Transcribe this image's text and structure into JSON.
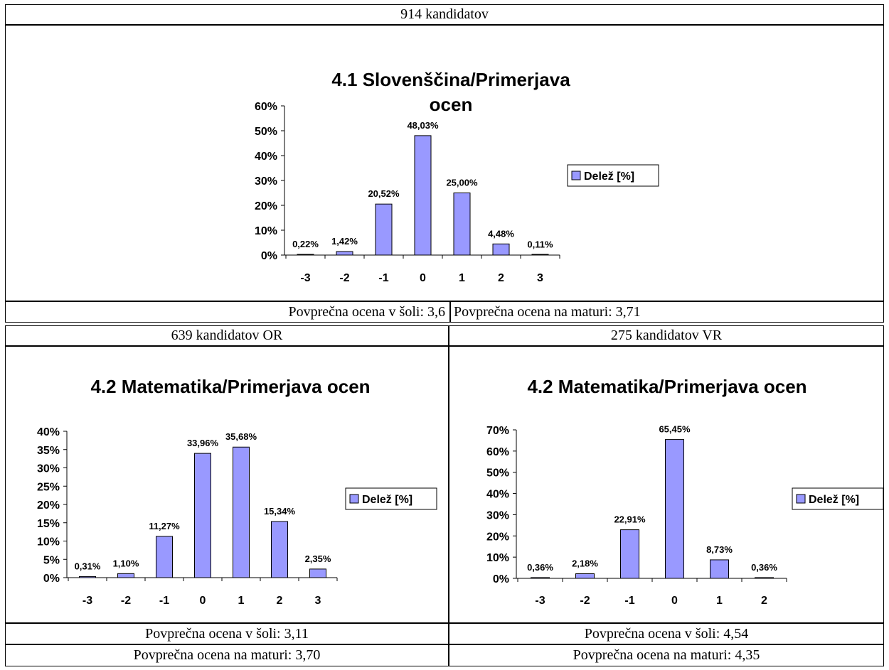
{
  "top": {
    "header": "914 kandidatov",
    "footer_left": "Povprečna ocena v šoli: 3,6",
    "footer_right": "Povprečna ocena na maturi: 3,71"
  },
  "left": {
    "header": "639 kandidatov OR",
    "footer1": "Povprečna ocena v šoli: 3,11",
    "footer2": "Povprečna ocena na maturi: 3,70"
  },
  "right": {
    "header": "275 kandidatov VR",
    "footer1": "Povprečna ocena v šoli: 4,54",
    "footer2": "Povprečna ocena na maturi: 4,35"
  },
  "colors": {
    "bar": "#9999ff",
    "bar_edge": "#000000"
  },
  "chart_data": [
    {
      "type": "bar",
      "title": [
        "4.1 Slovenščina/Primerjava",
        "ocen"
      ],
      "categories": [
        "-3",
        "-2",
        "-1",
        "0",
        "1",
        "2",
        "3"
      ],
      "series": [
        {
          "name": "Delež [%]",
          "values": [
            0.22,
            1.42,
            20.52,
            48.03,
            25.0,
            4.48,
            0.11
          ]
        }
      ],
      "value_labels": [
        "0,22%",
        "1,42%",
        "20,52%",
        "48,03%",
        "25,00%",
        "4,48%",
        "0,11%"
      ],
      "ylim": [
        0,
        60
      ],
      "yticks": [
        0,
        10,
        20,
        30,
        40,
        50,
        60
      ],
      "ytick_labels": [
        "0%",
        "10%",
        "20%",
        "30%",
        "40%",
        "50%",
        "60%"
      ],
      "legend": "right",
      "grid": false
    },
    {
      "type": "bar",
      "title": [
        "4.2 Matematika/Primerjava ocen"
      ],
      "categories": [
        "-3",
        "-2",
        "-1",
        "0",
        "1",
        "2",
        "3"
      ],
      "series": [
        {
          "name": "Delež [%]",
          "values": [
            0.31,
            1.1,
            11.27,
            33.96,
            35.68,
            15.34,
            2.35
          ]
        }
      ],
      "value_labels": [
        "0,31%",
        "1,10%",
        "11,27%",
        "33,96%",
        "35,68%",
        "15,34%",
        "2,35%"
      ],
      "ylim": [
        0,
        40
      ],
      "yticks": [
        0,
        5,
        10,
        15,
        20,
        25,
        30,
        35,
        40
      ],
      "ytick_labels": [
        "0%",
        "5%",
        "10%",
        "15%",
        "20%",
        "25%",
        "30%",
        "35%",
        "40%"
      ],
      "legend": "right",
      "grid": false
    },
    {
      "type": "bar",
      "title": [
        "4.2 Matematika/Primerjava ocen"
      ],
      "categories": [
        "-3",
        "-2",
        "-1",
        "0",
        "1",
        "2"
      ],
      "series": [
        {
          "name": "Delež [%]",
          "values": [
            0.36,
            2.18,
            22.91,
            65.45,
            8.73,
            0.36
          ]
        }
      ],
      "value_labels": [
        "0,36%",
        "2,18%",
        "22,91%",
        "65,45%",
        "8,73%",
        "0,36%"
      ],
      "ylim": [
        0,
        70
      ],
      "yticks": [
        0,
        10,
        20,
        30,
        40,
        50,
        60,
        70
      ],
      "ytick_labels": [
        "0%",
        "10%",
        "20%",
        "30%",
        "40%",
        "50%",
        "60%",
        "70%"
      ],
      "legend": "right",
      "grid": false
    }
  ]
}
